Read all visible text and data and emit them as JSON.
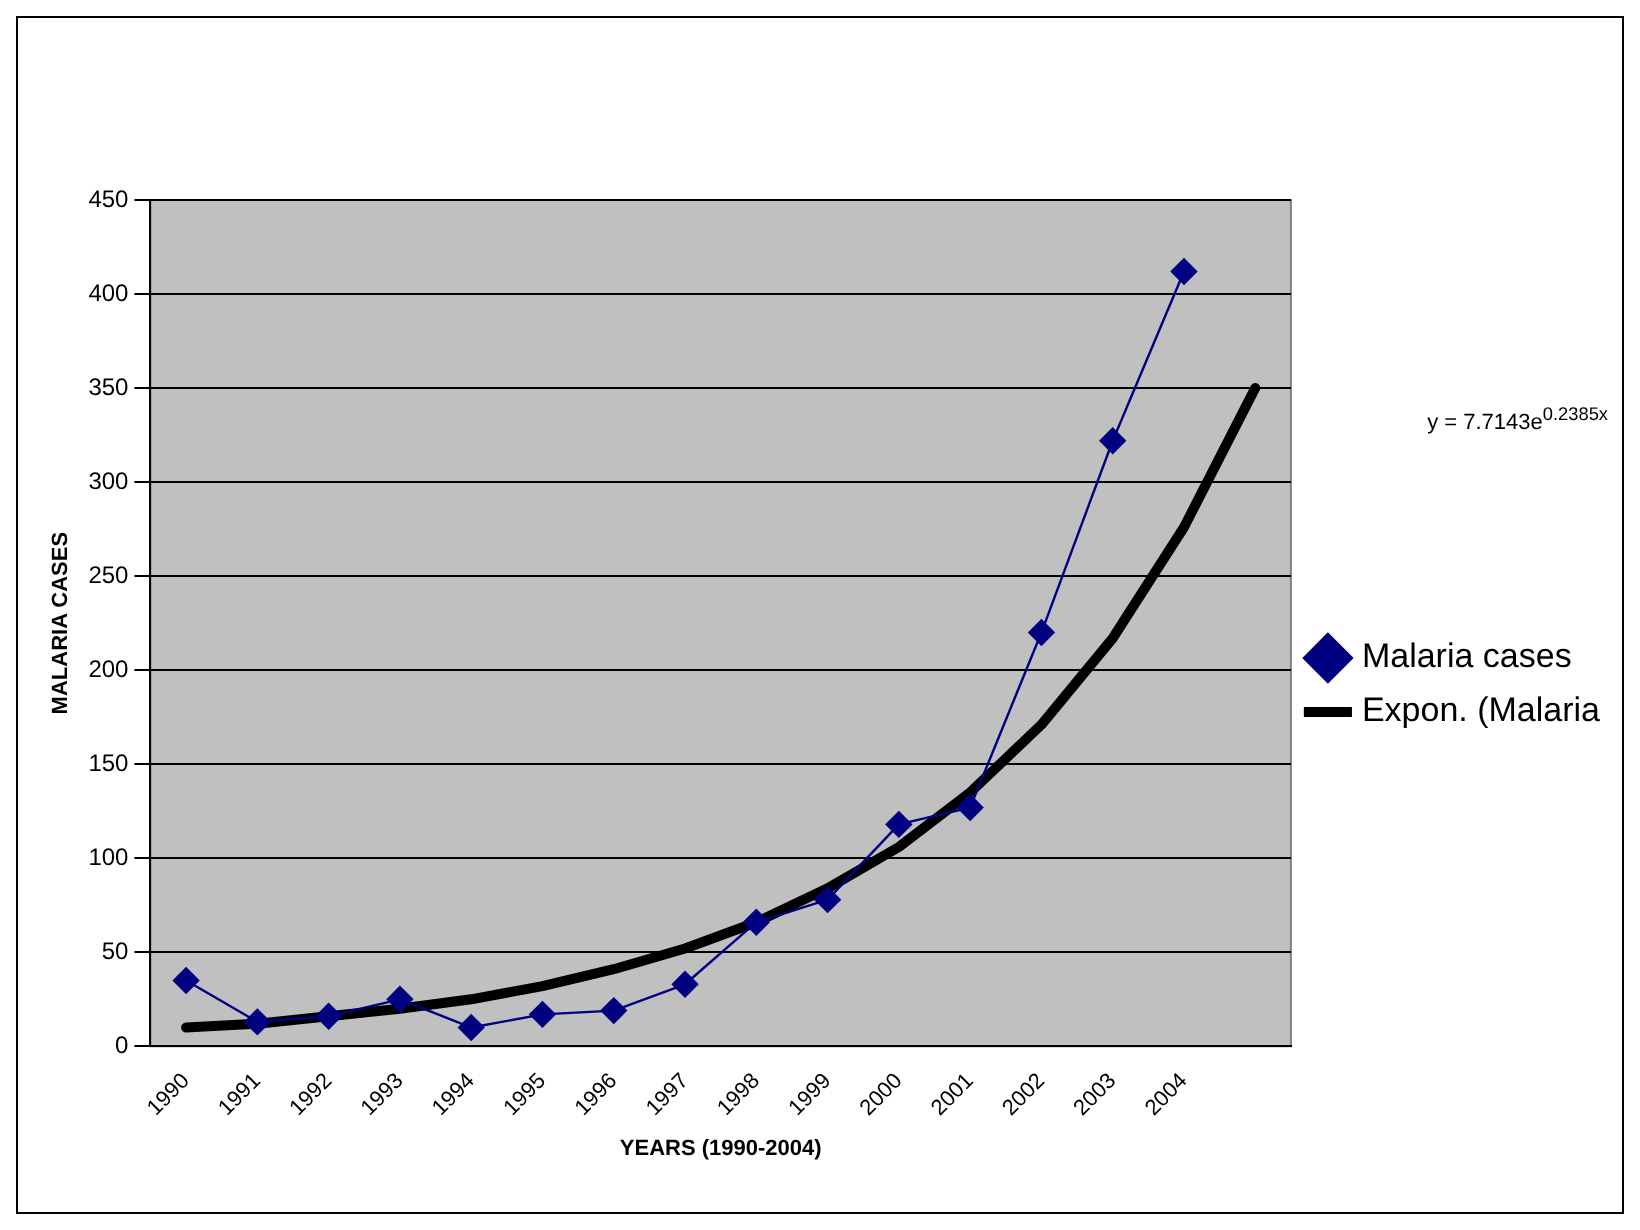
{
  "chart_data": {
    "type": "line",
    "xlabel": "YEARS (1990-2004)",
    "ylabel": "MALARIA CASES",
    "categories": [
      "1990",
      "1991",
      "1992",
      "1993",
      "1994",
      "1995",
      "1996",
      "1997",
      "1998",
      "1999",
      "2000",
      "2001",
      "2002",
      "2003",
      "2004",
      null
    ],
    "series": [
      {
        "name": "Malaria cases",
        "color": "#000080",
        "marker": "diamond",
        "values": [
          35,
          13,
          16,
          25,
          10,
          17,
          19,
          33,
          66,
          78,
          118,
          127,
          220,
          322,
          412,
          null
        ]
      },
      {
        "name": "Expon. (Malaria",
        "type": "line",
        "color": "#000000",
        "marker": "none",
        "values": [
          10,
          12,
          16,
          20,
          25,
          32,
          41,
          52,
          66,
          84,
          106,
          135,
          171,
          217,
          276,
          350
        ]
      }
    ],
    "ylim": [
      0,
      450
    ],
    "yticks": [
      0,
      50,
      100,
      150,
      200,
      250,
      300,
      350,
      400,
      450
    ],
    "grid": "y",
    "legend": "right",
    "line_style": "solid",
    "annotations": [
      "y = 7.7143e$^{0.2385x}$"
    ]
  }
}
